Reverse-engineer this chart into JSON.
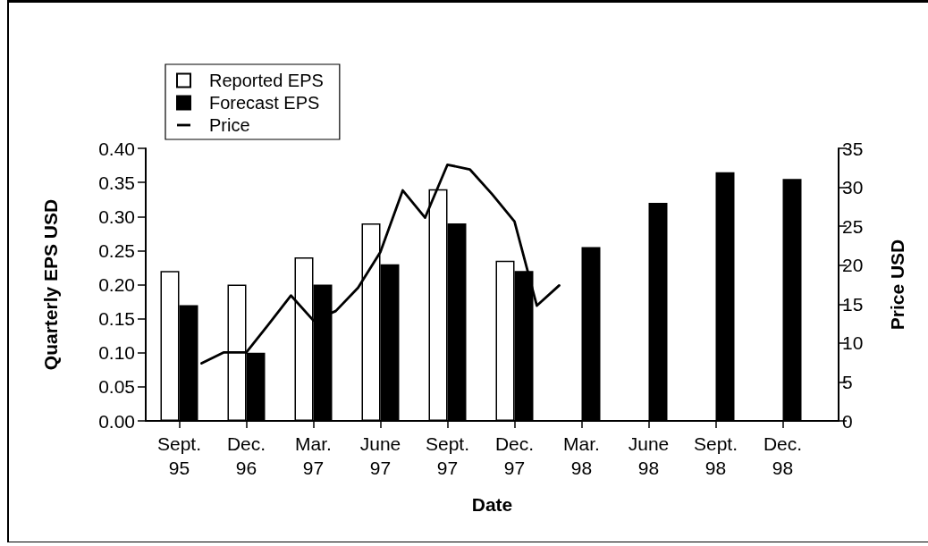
{
  "chart_data": {
    "type": "bar",
    "xlabel": "Date",
    "ylabel": "Quarterly EPS USD",
    "y2label": "Price USD",
    "categories": [
      null,
      "Sept. 95",
      null,
      null,
      "Dec. 96",
      null,
      null,
      "Mar. 97",
      null,
      null,
      "June 97",
      null,
      null,
      "Sept. 97",
      null,
      null,
      "Dec. 97",
      null,
      null,
      "Mar. 98",
      null,
      null,
      "June 98",
      null,
      null,
      "Sept. 98",
      null,
      null,
      "Dec. 98",
      null,
      null
    ],
    "ylim": [
      0,
      0.4
    ],
    "yticks": [
      {
        "value": 0,
        "label": "0.00"
      },
      0.05,
      {
        "value": 0.1,
        "label": "0.10"
      },
      0.15,
      {
        "value": 0.2,
        "label": "0.20"
      },
      0.25,
      {
        "value": 0.3,
        "label": "0.30"
      },
      0.35,
      {
        "value": 0.4,
        "label": "0.40"
      }
    ],
    "y2lim": [
      0,
      35
    ],
    "y2ticks": [
      0,
      5,
      10,
      15,
      20,
      25,
      30,
      35
    ],
    "series": [
      {
        "name": "Reported EPS",
        "color": "#ffffff",
        "values": [
          null,
          0.22,
          null,
          null,
          0.2,
          null,
          null,
          0.24,
          null,
          null,
          0.29,
          null,
          null,
          0.34,
          null,
          null,
          0.235,
          null,
          null,
          null,
          null,
          null,
          null,
          null,
          null,
          null,
          null,
          null,
          null,
          null,
          null
        ]
      },
      {
        "name": "Forecast EPS",
        "color": "#000000",
        "values": [
          null,
          0.17,
          null,
          null,
          0.1,
          null,
          null,
          0.2,
          null,
          null,
          0.23,
          null,
          null,
          0.29,
          null,
          null,
          0.22,
          null,
          null,
          0.255,
          null,
          null,
          0.32,
          null,
          null,
          0.365,
          null,
          null,
          0.355,
          null,
          null
        ]
      },
      {
        "name": "Price",
        "type": "line",
        "axis": "y2",
        "color": "#000000",
        "values": [
          null,
          null,
          7.4,
          8.8,
          8.8,
          12.4,
          16.1,
          12.9,
          14.1,
          17.1,
          21.7,
          29.6,
          26.1,
          32.9,
          32.3,
          29.1,
          25.6,
          14.8,
          17.4,
          null,
          null,
          null,
          null,
          null,
          null,
          null,
          null,
          null,
          null,
          null,
          null
        ]
      }
    ],
    "legend": "top left",
    "grid": false,
    "marker": "none"
  }
}
